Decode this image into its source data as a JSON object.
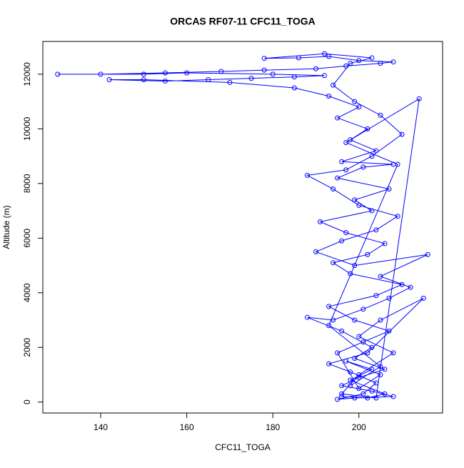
{
  "chart_data": {
    "type": "line",
    "title": "ORCAS RF07-11 CFC11_TOGA",
    "x_label": "CFC11_TOGA",
    "y_label": "Altitude (m)",
    "series": [
      {
        "name": "CFC11_TOGA",
        "color": "#0000ff",
        "markers": true,
        "x": [
          196,
          202,
          206,
          198,
          203,
          197,
          205,
          200,
          195,
          201,
          207,
          199,
          193,
          204,
          210,
          198,
          194,
          202,
          206,
          197,
          191,
          203,
          199,
          207,
          195,
          201,
          208,
          196,
          204,
          198,
          202,
          195,
          200,
          193,
          185,
          170,
          150,
          142,
          155,
          165,
          175,
          185,
          192,
          180,
          160,
          150,
          130,
          140,
          155,
          168,
          178,
          190,
          197,
          205,
          208,
          200,
          193,
          186,
          178,
          192,
          203,
          198,
          194,
          199,
          205,
          210,
          203,
          197,
          188,
          194,
          200,
          209,
          204,
          196,
          190,
          199,
          216,
          205,
          212,
          207,
          201,
          194,
          188,
          196,
          203,
          199,
          206,
          200,
          196,
          203,
          208,
          199,
          195,
          201,
          204,
          198,
          193,
          202,
          215,
          205,
          200,
          208,
          200,
          196,
          204,
          214,
          197,
          209,
          193,
          205,
          198
        ],
        "values": [
          200,
          150,
          300,
          800,
          1200,
          1500,
          1000,
          500,
          1800,
          2200,
          2600,
          3000,
          3500,
          3900,
          4300,
          4700,
          5100,
          5400,
          5800,
          6200,
          6600,
          7000,
          7400,
          7800,
          8200,
          8600,
          8700,
          8800,
          9200,
          9600,
          10000,
          10400,
          10800,
          11200,
          11500,
          11700,
          11800,
          11800,
          11750,
          11800,
          11850,
          11900,
          11950,
          12000,
          12050,
          12000,
          12000,
          12000,
          12050,
          12100,
          12150,
          12200,
          12300,
          12400,
          12450,
          12500,
          12650,
          12600,
          12580,
          12750,
          12600,
          12400,
          11600,
          11000,
          10500,
          9800,
          9000,
          8500,
          8300,
          7800,
          7200,
          6800,
          6300,
          5900,
          5500,
          5000,
          5400,
          4600,
          4200,
          3800,
          3400,
          3000,
          3100,
          2600,
          2000,
          1600,
          1200,
          900,
          600,
          400,
          200,
          150,
          100,
          300,
          700,
          1100,
          1400,
          1800,
          3800,
          3000,
          2400,
          1800,
          1000,
          300,
          150,
          11100,
          9500,
          8700,
          2800,
          1300,
          600
        ]
      }
    ],
    "xlim": [
      126.56,
      219.44
    ],
    "ylim": [
      -400,
      13200
    ],
    "xticks": [
      140,
      160,
      180,
      200
    ],
    "yticks": [
      0,
      2000,
      4000,
      6000,
      8000,
      10000,
      12000
    ]
  }
}
